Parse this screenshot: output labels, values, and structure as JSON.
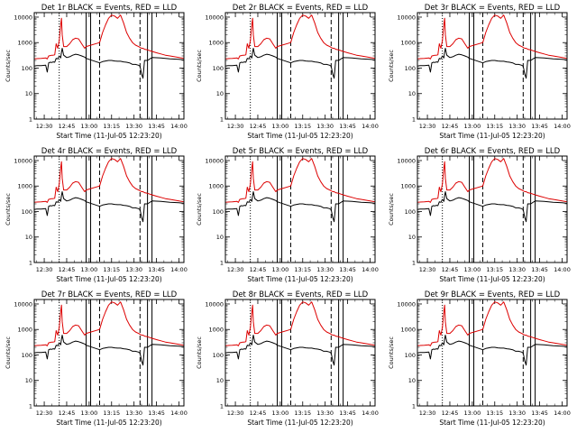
{
  "colors": {
    "events": "#000000",
    "lld": "#dd0000",
    "background": "#ffffff",
    "axes": "#000000"
  },
  "chart_data": [
    {
      "type": "line",
      "title": "Det 1r BLACK = Events, RED = LLD",
      "xlabel": "Start Time (11-Jul-05 12:23:20)",
      "ylabel": "Counts/sec"
    },
    {
      "type": "line",
      "title": "Det 2r BLACK = Events, RED = LLD",
      "xlabel": "Start Time (11-Jul-05 12:23:20)",
      "ylabel": "Counts/sec"
    },
    {
      "type": "line",
      "title": "Det 3r BLACK = Events, RED = LLD",
      "xlabel": "Start Time (11-Jul-05 12:23:20)",
      "ylabel": "Counts/sec"
    },
    {
      "type": "line",
      "title": "Det 4r BLACK = Events, RED = LLD",
      "xlabel": "Start Time (11-Jul-05 12:23:20)",
      "ylabel": "Counts/sec"
    },
    {
      "type": "line",
      "title": "Det 5r BLACK = Events, RED = LLD",
      "xlabel": "Start Time (11-Jul-05 12:23:20)",
      "ylabel": "Counts/sec"
    },
    {
      "type": "line",
      "title": "Det 6r BLACK = Events, RED = LLD",
      "xlabel": "Start Time (11-Jul-05 12:23:20)",
      "ylabel": "Counts/sec"
    },
    {
      "type": "line",
      "title": "Det 7r BLACK = Events, RED = LLD",
      "xlabel": "Start Time (11-Jul-05 12:23:20)",
      "ylabel": "Counts/sec"
    },
    {
      "type": "line",
      "title": "Det 8r BLACK = Events, RED = LLD",
      "xlabel": "Start Time (11-Jul-05 12:23:20)",
      "ylabel": "Counts/sec"
    },
    {
      "type": "line",
      "title": "Det 9r BLACK = Events, RED = LLD",
      "xlabel": "Start Time (11-Jul-05 12:23:20)",
      "ylabel": "Counts/sec"
    }
  ],
  "shared": {
    "y_scale": "log",
    "ylim": [
      1,
      15000
    ],
    "y_ticks": [
      1,
      10,
      100,
      1000,
      10000
    ],
    "y_tick_labels": [
      "1",
      "10",
      "100",
      "1000",
      "10000"
    ],
    "xlim": [
      "12:23:20",
      "14:03:20"
    ],
    "x_ticks": [
      "12:30",
      "12:45",
      "13:00",
      "13:15",
      "13:30",
      "13:45",
      "14:00"
    ],
    "x_tick_minutes": [
      750,
      765,
      780,
      795,
      810,
      825,
      840
    ],
    "markers": {
      "solid": [
        "12:58",
        "13:01",
        "13:39",
        "13:42"
      ],
      "dashed": [
        "13:07",
        "13:34"
      ],
      "dotted": [
        "12:40"
      ]
    },
    "series": [
      {
        "name": "Events",
        "color": "#000000",
        "x": [
          "12:23:20",
          "12:25",
          "12:28",
          "12:31",
          "12:32",
          "12:33",
          "12:34",
          "12:35",
          "12:36",
          "12:37",
          "12:38",
          "12:39",
          "12:40",
          "12:41",
          "12:41:30",
          "12:42",
          "12:43",
          "12:45",
          "12:47",
          "12:49",
          "12:51",
          "12:53",
          "12:55",
          "12:57",
          "12:58",
          "13:07",
          "13:09",
          "13:11",
          "13:13",
          "13:15",
          "13:17",
          "13:19",
          "13:21",
          "13:23",
          "13:25",
          "13:27",
          "13:29",
          "13:31",
          "13:33",
          "13:34",
          "13:35",
          "13:36",
          "13:37",
          "13:39",
          "13:42",
          "13:45",
          "13:48",
          "13:51",
          "13:54",
          "13:57",
          "14:00",
          "14:03:20"
        ],
        "y": [
          120,
          125,
          125,
          130,
          70,
          160,
          170,
          165,
          175,
          170,
          240,
          230,
          300,
          250,
          420,
          600,
          320,
          260,
          280,
          320,
          350,
          330,
          300,
          270,
          240,
          160,
          180,
          190,
          200,
          200,
          190,
          185,
          185,
          175,
          170,
          160,
          140,
          140,
          130,
          120,
          60,
          40,
          200,
          200,
          260,
          255,
          250,
          240,
          230,
          225,
          220,
          210
        ]
      },
      {
        "name": "LLD",
        "color": "#dd0000",
        "x": [
          "12:23:20",
          "12:25",
          "12:28",
          "12:31",
          "12:32",
          "12:33",
          "12:34",
          "12:35",
          "12:36",
          "12:37",
          "12:38",
          "12:39",
          "12:40",
          "12:41",
          "12:41:30",
          "12:42",
          "12:43",
          "12:45",
          "12:47",
          "12:49",
          "12:51",
          "12:53",
          "12:55",
          "12:57",
          "12:58",
          "13:07",
          "13:09",
          "13:11",
          "13:13",
          "13:15",
          "13:17",
          "13:19",
          "13:21",
          "13:23",
          "13:25",
          "13:27",
          "13:29",
          "13:31",
          "13:33",
          "13:34",
          "13:35",
          "13:36",
          "13:37",
          "13:39",
          "13:42",
          "13:45",
          "13:48",
          "13:51",
          "13:54",
          "13:57",
          "14:00",
          "14:03:20"
        ],
        "y": [
          230,
          235,
          240,
          250,
          230,
          300,
          310,
          320,
          320,
          330,
          900,
          600,
          1200,
          5000,
          9000,
          2000,
          700,
          700,
          900,
          1300,
          1500,
          1400,
          900,
          600,
          700,
          1000,
          2500,
          5000,
          9000,
          12000,
          11000,
          9000,
          12000,
          6000,
          2500,
          1500,
          1000,
          800,
          700,
          650,
          600,
          600,
          550,
          520,
          450,
          400,
          360,
          320,
          300,
          280,
          260,
          240
        ]
      }
    ]
  }
}
